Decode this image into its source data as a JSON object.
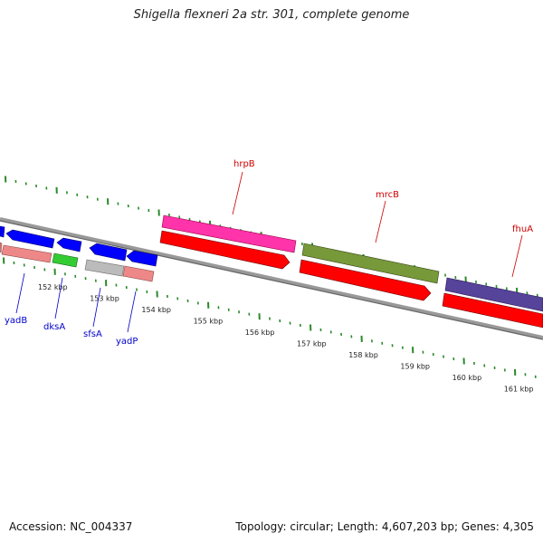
{
  "title": "Shigella flexneri 2a str. 301, complete genome",
  "footer": {
    "accession": "Accession: NC_004337",
    "topology": "Topology: circular; Length: 4,607,203 bp; Genes: 4,305"
  },
  "colors": {
    "backbone": "#888888",
    "tick": "#2a8a2a",
    "label_red": "#cc0000",
    "label_blue": "#0000cc",
    "cds_red": "#ff0000",
    "blue": "#0000ff",
    "salmon": "#ee8888",
    "green": "#33cc33",
    "gray": "#bbbbbb",
    "magenta": "#ff33aa",
    "olive": "#77993a",
    "purple": "#554499"
  },
  "ticks": [
    "152 kbp",
    "153 kbp",
    "154 kbp",
    "155 kbp",
    "156 kbp",
    "157 kbp",
    "158 kbp",
    "159 kbp",
    "160 kbp",
    "161 kbp"
  ],
  "labels": {
    "hrpB": "hrpB",
    "mrcB": "mrcB",
    "fhuA": "fhuA",
    "yadB": "yadB",
    "dksA": "dksA",
    "sfsA": "sfsA",
    "yadP": "yadP"
  }
}
